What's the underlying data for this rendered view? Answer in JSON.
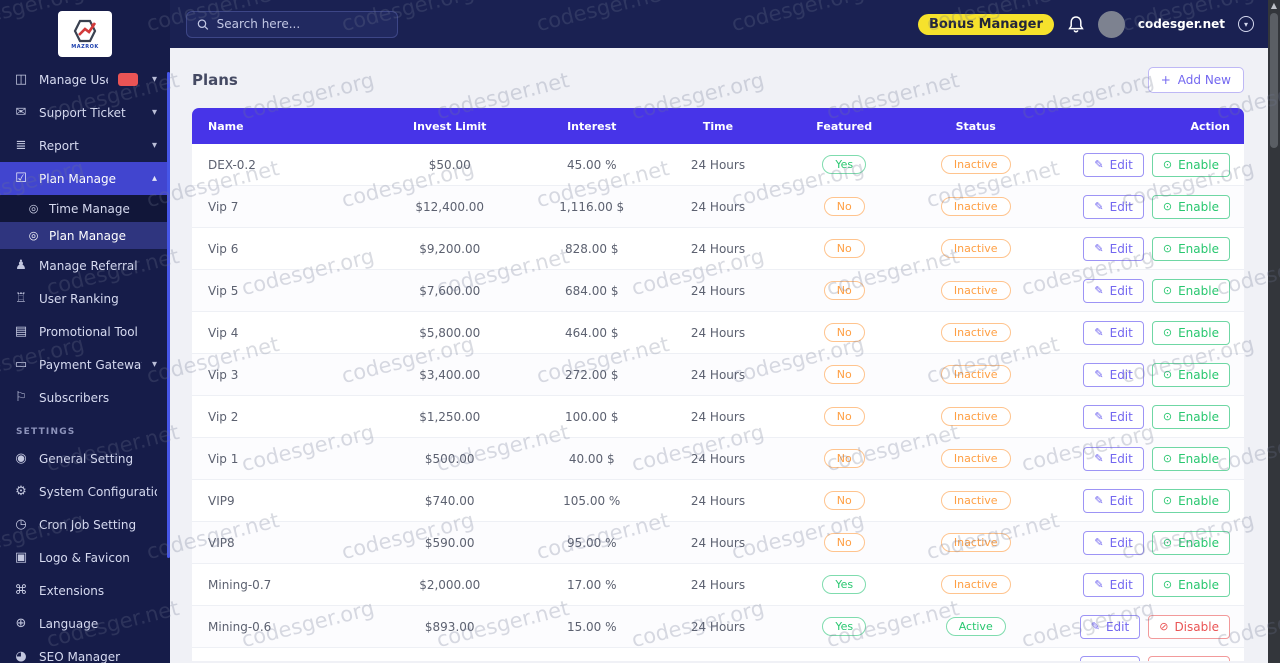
{
  "brand": {
    "logo_text": "MAZROK"
  },
  "topbar": {
    "search_placeholder": "Search here...",
    "bonus_label": "Bonus Manager",
    "account_name": "codesger.net"
  },
  "sidebar": {
    "items": [
      {
        "label": "Manage Users",
        "icon": "users-icon",
        "chevron": "down",
        "has_badge": true
      },
      {
        "label": "Support Ticket",
        "icon": "ticket-icon",
        "chevron": "down"
      },
      {
        "label": "Report",
        "icon": "report-icon",
        "chevron": "down"
      },
      {
        "label": "Plan Manage",
        "icon": "plan-icon",
        "chevron": "up",
        "active": true,
        "children": [
          {
            "label": "Time Manage",
            "icon": "circle-dot-icon"
          },
          {
            "label": "Plan Manage",
            "icon": "circle-dot-icon",
            "selected": true
          }
        ]
      },
      {
        "label": "Manage Referral",
        "icon": "referral-icon"
      },
      {
        "label": "User Ranking",
        "icon": "ranking-icon"
      },
      {
        "label": "Promotional Tool",
        "icon": "promo-icon"
      },
      {
        "label": "Payment Gateways",
        "icon": "payment-icon",
        "chevron": "down"
      },
      {
        "label": "Subscribers",
        "icon": "subscribers-icon"
      }
    ],
    "section_label": "SETTINGS",
    "settings_items": [
      {
        "label": "General Setting",
        "icon": "general-setting-icon"
      },
      {
        "label": "System Configuration",
        "icon": "system-config-icon"
      },
      {
        "label": "Cron Job Setting",
        "icon": "cron-icon"
      },
      {
        "label": "Logo & Favicon",
        "icon": "logo-favicon-icon"
      },
      {
        "label": "Extensions",
        "icon": "extensions-icon"
      },
      {
        "label": "Language",
        "icon": "language-icon"
      },
      {
        "label": "SEO Manager",
        "icon": "seo-icon"
      }
    ]
  },
  "page": {
    "title": "Plans",
    "add_new_label": "Add New"
  },
  "table": {
    "columns": [
      "Name",
      "Invest Limit",
      "Interest",
      "Time",
      "Featured",
      "Status",
      "Action"
    ],
    "rows": [
      {
        "name": "DEX-0.2",
        "invest_limit": "$50.00",
        "interest": "45.00 %",
        "time": "24 Hours",
        "featured": "Yes",
        "status": "Inactive",
        "actions": [
          "Edit",
          "Enable"
        ]
      },
      {
        "name": "Vip 7",
        "invest_limit": "$12,400.00",
        "interest": "1,116.00 $",
        "time": "24 Hours",
        "featured": "No",
        "status": "Inactive",
        "actions": [
          "Edit",
          "Enable"
        ]
      },
      {
        "name": "Vip 6",
        "invest_limit": "$9,200.00",
        "interest": "828.00 $",
        "time": "24 Hours",
        "featured": "No",
        "status": "Inactive",
        "actions": [
          "Edit",
          "Enable"
        ]
      },
      {
        "name": "Vip 5",
        "invest_limit": "$7,600.00",
        "interest": "684.00 $",
        "time": "24 Hours",
        "featured": "No",
        "status": "Inactive",
        "actions": [
          "Edit",
          "Enable"
        ]
      },
      {
        "name": "Vip 4",
        "invest_limit": "$5,800.00",
        "interest": "464.00 $",
        "time": "24 Hours",
        "featured": "No",
        "status": "Inactive",
        "actions": [
          "Edit",
          "Enable"
        ]
      },
      {
        "name": "Vip 3",
        "invest_limit": "$3,400.00",
        "interest": "272.00 $",
        "time": "24 Hours",
        "featured": "No",
        "status": "Inactive",
        "actions": [
          "Edit",
          "Enable"
        ]
      },
      {
        "name": "Vip 2",
        "invest_limit": "$1,250.00",
        "interest": "100.00 $",
        "time": "24 Hours",
        "featured": "No",
        "status": "Inactive",
        "actions": [
          "Edit",
          "Enable"
        ]
      },
      {
        "name": "Vip 1",
        "invest_limit": "$500.00",
        "interest": "40.00 $",
        "time": "24 Hours",
        "featured": "No",
        "status": "Inactive",
        "actions": [
          "Edit",
          "Enable"
        ]
      },
      {
        "name": "VIP9",
        "invest_limit": "$740.00",
        "interest": "105.00 %",
        "time": "24 Hours",
        "featured": "No",
        "status": "Inactive",
        "actions": [
          "Edit",
          "Enable"
        ]
      },
      {
        "name": "VIP8",
        "invest_limit": "$590.00",
        "interest": "95.00 %",
        "time": "24 Hours",
        "featured": "No",
        "status": "Inactive",
        "actions": [
          "Edit",
          "Enable"
        ]
      },
      {
        "name": "Mining-0.7",
        "invest_limit": "$2,000.00",
        "interest": "17.00 %",
        "time": "24 Hours",
        "featured": "Yes",
        "status": "Inactive",
        "actions": [
          "Edit",
          "Enable"
        ]
      },
      {
        "name": "Mining-0.6",
        "invest_limit": "$893.00",
        "interest": "15.00 %",
        "time": "24 Hours",
        "featured": "Yes",
        "status": "Active",
        "actions": [
          "Edit",
          "Disable"
        ]
      }
    ],
    "partial_row_actions": [
      "Edit",
      "Disable"
    ]
  },
  "watermarks": {
    "texts": [
      "codesger.org",
      "codesger.net"
    ]
  },
  "colors": {
    "sidebar_bg": "#161c49",
    "topbar_bg": "#1a2152",
    "active_menu": "#4145cf",
    "table_header": "#4734e8",
    "bonus_yellow": "#f6e22c",
    "green": "#28c76f",
    "orange": "#ff9f43",
    "red": "#ea5455",
    "purple": "#7367f0"
  }
}
